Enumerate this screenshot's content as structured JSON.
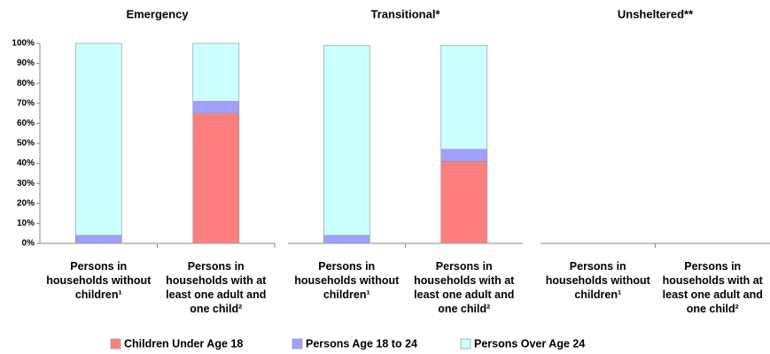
{
  "chart_data": [
    {
      "type": "bar",
      "title": "Emergency",
      "categories": [
        "Persons in households without children¹",
        "Persons in households with at least one adult and one child²"
      ],
      "series": [
        {
          "name": "Children Under Age 18",
          "color": "#ff7f7f",
          "values": [
            0,
            65
          ]
        },
        {
          "name": "Persons Age 18 to 24",
          "color": "#9f9fff",
          "values": [
            4,
            6
          ]
        },
        {
          "name": "Persons Over Age 24",
          "color": "#ccffff",
          "values": [
            96,
            29
          ]
        }
      ],
      "ylim": [
        0,
        100
      ],
      "yticks": [
        {
          "value": 0,
          "label": "0%"
        },
        {
          "value": 10,
          "label": "10%"
        },
        {
          "value": 20,
          "label": "20%"
        },
        {
          "value": 30,
          "label": "30%"
        },
        {
          "value": 40,
          "label": "40%"
        },
        {
          "value": 50,
          "label": "50%"
        },
        {
          "value": 60,
          "label": "60%"
        },
        {
          "value": 70,
          "label": "70%"
        },
        {
          "value": 80,
          "label": "80%"
        },
        {
          "value": 90,
          "label": "90%"
        },
        {
          "value": 100,
          "label": "100%"
        }
      ],
      "stacked": true,
      "legend": "bottom"
    },
    {
      "type": "bar",
      "title": "Transitional*",
      "categories": [
        "Persons in households without children¹",
        "Persons in households with at least one adult and one child²"
      ],
      "series": [
        {
          "name": "Children Under Age 18",
          "color": "#ff7f7f",
          "values": [
            0,
            41
          ]
        },
        {
          "name": "Persons Age 18 to 24",
          "color": "#9f9fff",
          "values": [
            4,
            6
          ]
        },
        {
          "name": "Persons Over Age 24",
          "color": "#ccffff",
          "values": [
            95,
            52
          ]
        }
      ],
      "ylim": [
        0,
        100
      ],
      "stacked": true
    },
    {
      "type": "bar",
      "title": "Unsheltered**",
      "categories": [
        "Persons in households without children¹",
        "Persons in households with at least one adult and one child²"
      ],
      "series": [
        {
          "name": "Children Under Age 18",
          "color": "#ff7f7f",
          "values": [
            0,
            0
          ]
        },
        {
          "name": "Persons Age 18 to 24",
          "color": "#9f9fff",
          "values": [
            0,
            0
          ]
        },
        {
          "name": "Persons Over Age 24",
          "color": "#ccffff",
          "values": [
            0,
            0
          ]
        }
      ],
      "ylim": [
        0,
        100
      ],
      "stacked": true
    }
  ]
}
